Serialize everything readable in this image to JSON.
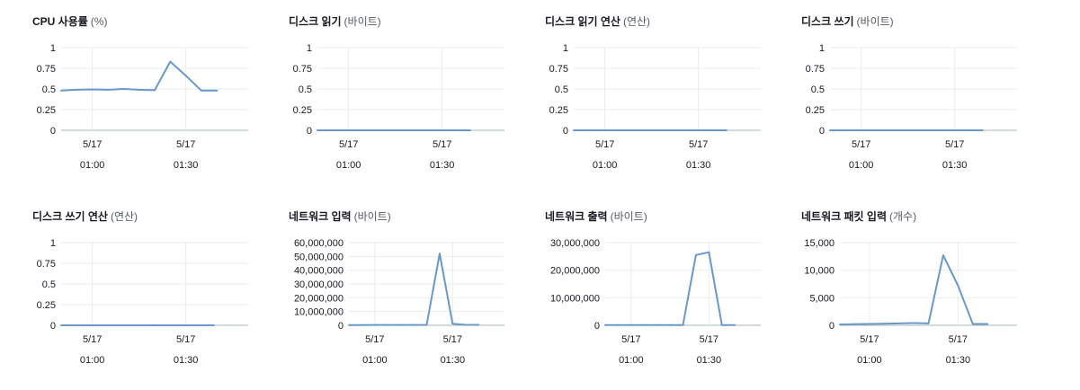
{
  "panels": [
    {
      "metric": "CPU 사용률",
      "unit": "(%)"
    },
    {
      "metric": "디스크 읽기",
      "unit": "(바이트)"
    },
    {
      "metric": "디스크 읽기 연산",
      "unit": "(연산)"
    },
    {
      "metric": "디스크 쓰기",
      "unit": "(바이트)"
    },
    {
      "metric": "디스크 쓰기 연산",
      "unit": "(연산)"
    },
    {
      "metric": "네트워크 입력",
      "unit": "(바이트)"
    },
    {
      "metric": "네트워크 출력",
      "unit": "(바이트)"
    },
    {
      "metric": "네트워크 패킷 입력",
      "unit": "(개수)"
    }
  ],
  "colors": {
    "line": "#6a98c9",
    "grid": "#eaeded",
    "axis": "#aab7b8",
    "text": "#16191f"
  },
  "chart_data": [
    {
      "type": "line",
      "title": "CPU 사용률 (%)",
      "ylim": [
        0,
        1
      ],
      "yticks": [
        "0",
        "0.25",
        "0.5",
        "0.75",
        "1"
      ],
      "xticks": [
        {
          "x": 10,
          "line1": "5/17",
          "line2": "01:00"
        },
        {
          "x": 40,
          "line1": "5/17",
          "line2": "01:30"
        }
      ],
      "xlim": [
        0,
        60
      ],
      "series": [
        {
          "x": [
            0,
            5,
            10,
            15,
            20,
            25,
            30,
            35,
            40,
            45,
            50
          ],
          "y": [
            0.48,
            0.49,
            0.495,
            0.49,
            0.5,
            0.49,
            0.485,
            0.83,
            0.66,
            0.48,
            0.48
          ]
        }
      ]
    },
    {
      "type": "line",
      "title": "디스크 읽기 (바이트)",
      "ylim": [
        0,
        1
      ],
      "yticks": [
        "0",
        "0.25",
        "0.5",
        "0.75",
        "1"
      ],
      "xticks": [
        {
          "x": 10,
          "line1": "5/17",
          "line2": "01:00"
        },
        {
          "x": 40,
          "line1": "5/17",
          "line2": "01:30"
        }
      ],
      "xlim": [
        0,
        60
      ],
      "series": [
        {
          "x": [
            0,
            10,
            20,
            30,
            40,
            49
          ],
          "y": [
            0,
            0,
            0,
            0,
            0,
            0
          ]
        }
      ]
    },
    {
      "type": "line",
      "title": "디스크 읽기 연산 (연산)",
      "ylim": [
        0,
        1
      ],
      "yticks": [
        "0",
        "0.25",
        "0.5",
        "0.75",
        "1"
      ],
      "xticks": [
        {
          "x": 10,
          "line1": "5/17",
          "line2": "01:00"
        },
        {
          "x": 40,
          "line1": "5/17",
          "line2": "01:30"
        }
      ],
      "xlim": [
        0,
        60
      ],
      "series": [
        {
          "x": [
            0,
            10,
            20,
            30,
            40,
            49
          ],
          "y": [
            0,
            0,
            0,
            0,
            0,
            0
          ]
        }
      ]
    },
    {
      "type": "line",
      "title": "디스크 쓰기 (바이트)",
      "ylim": [
        0,
        1
      ],
      "yticks": [
        "0",
        "0.25",
        "0.5",
        "0.75",
        "1"
      ],
      "xticks": [
        {
          "x": 10,
          "line1": "5/17",
          "line2": "01:00"
        },
        {
          "x": 40,
          "line1": "5/17",
          "line2": "01:30"
        }
      ],
      "xlim": [
        0,
        60
      ],
      "series": [
        {
          "x": [
            0,
            10,
            20,
            30,
            40,
            49
          ],
          "y": [
            0,
            0,
            0,
            0,
            0,
            0
          ]
        }
      ]
    },
    {
      "type": "line",
      "title": "디스크 쓰기 연산 (연산)",
      "ylim": [
        0,
        1
      ],
      "yticks": [
        "0",
        "0.25",
        "0.5",
        "0.75",
        "1"
      ],
      "xticks": [
        {
          "x": 10,
          "line1": "5/17",
          "line2": "01:00"
        },
        {
          "x": 40,
          "line1": "5/17",
          "line2": "01:30"
        }
      ],
      "xlim": [
        0,
        60
      ],
      "series": [
        {
          "x": [
            0,
            10,
            20,
            30,
            40,
            49
          ],
          "y": [
            0,
            0,
            0,
            0,
            0,
            0
          ]
        }
      ]
    },
    {
      "type": "line",
      "title": "네트워크 입력 (바이트)",
      "ylim": [
        0,
        60000000
      ],
      "yticks": [
        "0",
        "10,000,000",
        "20,000,000",
        "30,000,000",
        "40,000,000",
        "50,000,000",
        "60,000,000"
      ],
      "xticks": [
        {
          "x": 10,
          "line1": "5/17",
          "line2": "01:00"
        },
        {
          "x": 40,
          "line1": "5/17",
          "line2": "01:30"
        }
      ],
      "xlim": [
        0,
        60
      ],
      "series": [
        {
          "x": [
            0,
            5,
            10,
            15,
            20,
            25,
            30,
            35,
            40,
            45,
            50
          ],
          "y": [
            200000,
            200000,
            250000,
            250000,
            250000,
            250000,
            300000,
            52000000,
            1200000,
            300000,
            300000
          ]
        }
      ]
    },
    {
      "type": "line",
      "title": "네트워크 출력 (바이트)",
      "ylim": [
        0,
        30000000
      ],
      "yticks": [
        "0",
        "10,000,000",
        "20,000,000",
        "30,000,000"
      ],
      "xticks": [
        {
          "x": 10,
          "line1": "5/17",
          "line2": "01:00"
        },
        {
          "x": 40,
          "line1": "5/17",
          "line2": "01:30"
        }
      ],
      "xlim": [
        0,
        60
      ],
      "series": [
        {
          "x": [
            0,
            5,
            10,
            15,
            20,
            25,
            30,
            35,
            40,
            45,
            50
          ],
          "y": [
            100000,
            100000,
            100000,
            100000,
            100000,
            100000,
            100000,
            25500000,
            26500000,
            100000,
            100000
          ]
        }
      ]
    },
    {
      "type": "line",
      "title": "네트워크 패킷 입력 (개수)",
      "ylim": [
        0,
        15000
      ],
      "yticks": [
        "0",
        "5,000",
        "10,000",
        "15,000"
      ],
      "xticks": [
        {
          "x": 10,
          "line1": "5/17",
          "line2": "01:00"
        },
        {
          "x": 40,
          "line1": "5/17",
          "line2": "01:30"
        }
      ],
      "xlim": [
        0,
        60
      ],
      "series": [
        {
          "x": [
            0,
            5,
            10,
            15,
            20,
            25,
            30,
            35,
            40,
            45,
            50
          ],
          "y": [
            150,
            200,
            250,
            300,
            350,
            400,
            350,
            12700,
            7200,
            250,
            250
          ]
        }
      ]
    }
  ]
}
